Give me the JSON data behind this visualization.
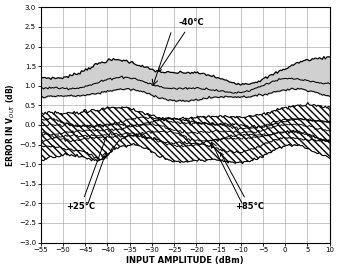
{
  "x_min": -55,
  "x_max": 10,
  "y_min": -3.0,
  "y_max": 3.0,
  "x_ticks": [
    -55,
    -50,
    -45,
    -40,
    -35,
    -30,
    -25,
    -20,
    -15,
    -10,
    -5,
    0,
    5,
    10
  ],
  "y_ticks": [
    -3.0,
    -2.5,
    -2.0,
    -1.5,
    -1.0,
    -0.5,
    0,
    0.5,
    1.0,
    1.5,
    2.0,
    2.5,
    3.0
  ],
  "xlabel": "INPUT AMPLITUDE (dBm)",
  "ylabel_text": "ERROR IN V$_{OUT}$ (dB)",
  "background_color": "#ffffff",
  "grid_color": "#999999",
  "shaded_region_color": "#d0d0d0",
  "annotation_neg40": "-40°C",
  "annotation_pos25": "+25°C",
  "annotation_pos85": "+85°C"
}
